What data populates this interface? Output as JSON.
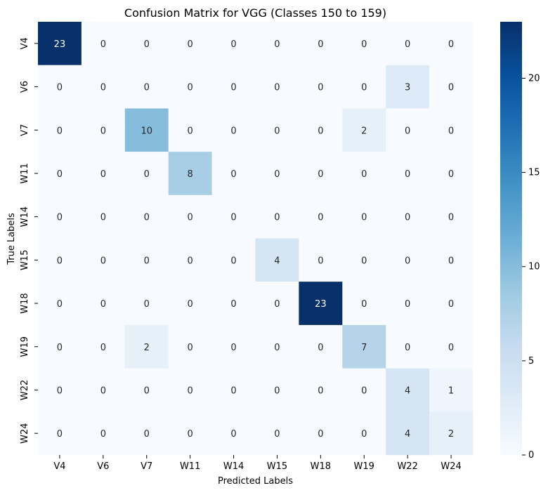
{
  "chart_data": {
    "type": "heatmap",
    "title": "Confusion Matrix for VGG (Classes 150 to 159)",
    "xlabel": "Predicted Labels",
    "ylabel": "True Labels",
    "x_categories": [
      "V4",
      "V6",
      "V7",
      "W11",
      "W14",
      "W15",
      "W18",
      "W19",
      "W22",
      "W24"
    ],
    "y_categories": [
      "V4",
      "V6",
      "V7",
      "W11",
      "W14",
      "W15",
      "W18",
      "W19",
      "W22",
      "W24"
    ],
    "values": [
      [
        23,
        0,
        0,
        0,
        0,
        0,
        0,
        0,
        0,
        0
      ],
      [
        0,
        0,
        0,
        0,
        0,
        0,
        0,
        0,
        3,
        0
      ],
      [
        0,
        0,
        10,
        0,
        0,
        0,
        0,
        2,
        0,
        0
      ],
      [
        0,
        0,
        0,
        8,
        0,
        0,
        0,
        0,
        0,
        0
      ],
      [
        0,
        0,
        0,
        0,
        0,
        0,
        0,
        0,
        0,
        0
      ],
      [
        0,
        0,
        0,
        0,
        0,
        4,
        0,
        0,
        0,
        0
      ],
      [
        0,
        0,
        0,
        0,
        0,
        0,
        23,
        0,
        0,
        0
      ],
      [
        0,
        0,
        2,
        0,
        0,
        0,
        0,
        7,
        0,
        0
      ],
      [
        0,
        0,
        0,
        0,
        0,
        0,
        0,
        0,
        4,
        1
      ],
      [
        0,
        0,
        0,
        0,
        0,
        0,
        0,
        0,
        4,
        2
      ]
    ],
    "colorscale": "Blues",
    "colorbar": {
      "min": 0,
      "max": 23,
      "ticks": [
        0,
        5,
        10,
        15,
        20
      ]
    }
  }
}
